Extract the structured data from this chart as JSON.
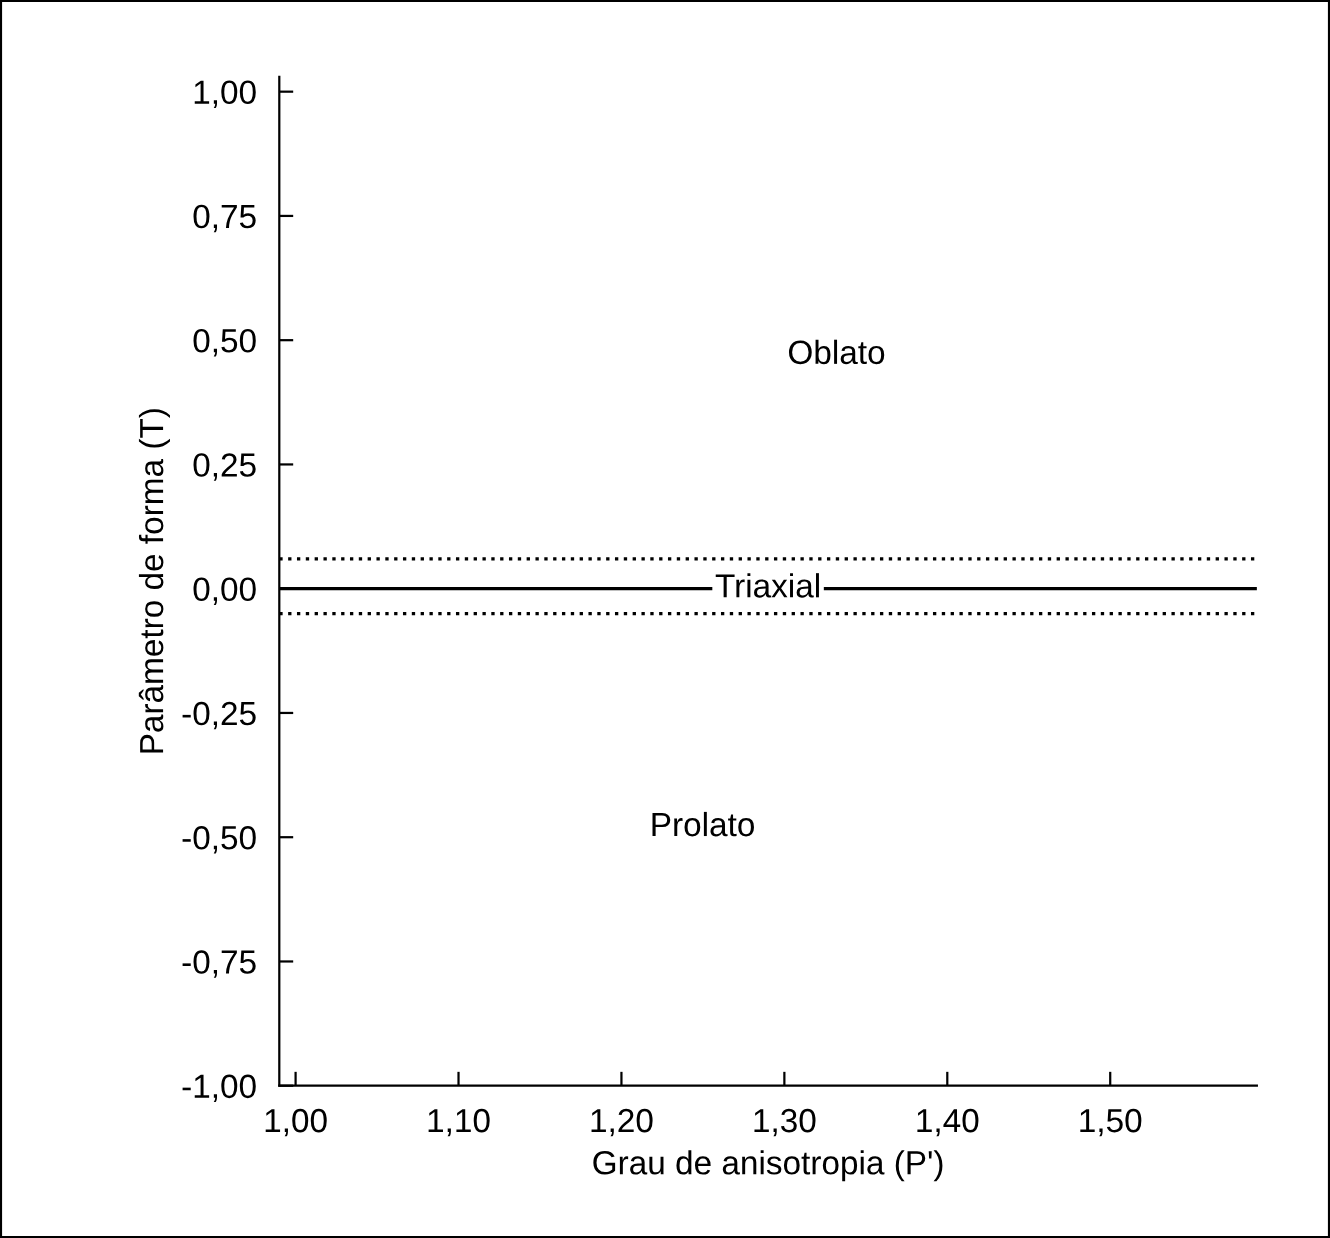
{
  "chart_data": {
    "type": "line",
    "xlabel": "Grau de anisotropia (P')",
    "ylabel": "Parâmetro de forma (T)",
    "xlim": [
      0.99,
      1.59
    ],
    "ylim": [
      -1.0,
      1.03
    ],
    "xticks": [
      {
        "value": 1.0,
        "label": "1,00"
      },
      {
        "value": 1.1,
        "label": "1,10"
      },
      {
        "value": 1.2,
        "label": "1,20"
      },
      {
        "value": 1.3,
        "label": "1,30"
      },
      {
        "value": 1.4,
        "label": "1,40"
      },
      {
        "value": 1.5,
        "label": "1,50"
      }
    ],
    "yticks": [
      {
        "value": -1.0,
        "label": "-1,00"
      },
      {
        "value": -0.75,
        "label": "-0,75"
      },
      {
        "value": -0.5,
        "label": "-0,50"
      },
      {
        "value": -0.25,
        "label": "-0,25"
      },
      {
        "value": 0.0,
        "label": "0,00"
      },
      {
        "value": 0.25,
        "label": "0,25"
      },
      {
        "value": 0.5,
        "label": "0,50"
      },
      {
        "value": 0.75,
        "label": "0,75"
      },
      {
        "value": 1.0,
        "label": "1,00"
      }
    ],
    "ref_lines": [
      {
        "axis": "y",
        "value": 0.0,
        "label": "Triaxial",
        "color": "#000000",
        "line_style": "solid"
      },
      {
        "axis": "y",
        "value": 0.06,
        "color": "#000000",
        "line_style": "dotted"
      },
      {
        "axis": "y",
        "value": -0.05,
        "color": "#000000",
        "line_style": "dotted"
      }
    ],
    "annotations": [
      "Oblato",
      "Prolato"
    ],
    "grid": false,
    "legend": false
  }
}
